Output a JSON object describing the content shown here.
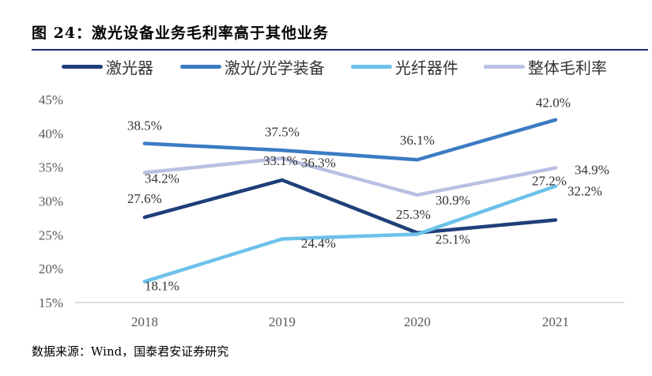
{
  "title": "图 24：激光设备业务毛利率高于其他业务",
  "source": "数据来源：Wind，国泰君安证券研究",
  "chart_data": {
    "type": "line",
    "title": "图 24：激光设备业务毛利率高于其他业务",
    "categories": [
      "2018",
      "2019",
      "2020",
      "2021"
    ],
    "ylim": [
      15,
      45
    ],
    "yticks": [
      "15%",
      "20%",
      "25%",
      "30%",
      "35%",
      "40%",
      "45%"
    ],
    "ytick_values": [
      15,
      20,
      25,
      30,
      35,
      40,
      45
    ],
    "grid": false,
    "legend_position": "top",
    "series": [
      {
        "name": "激光器",
        "color": "#1f3f7a",
        "values": [
          27.6,
          33.1,
          25.3,
          27.2
        ],
        "labels": [
          "27.6%",
          "33.1%",
          "25.3%",
          "27.2%"
        ]
      },
      {
        "name": "激光/光学装备",
        "color": "#3b7bc4",
        "values": [
          38.5,
          37.5,
          36.1,
          42.0
        ],
        "labels": [
          "38.5%",
          "37.5%",
          "36.1%",
          "42.0%"
        ]
      },
      {
        "name": "光纤器件",
        "color": "#6cc1ea",
        "values": [
          18.1,
          24.4,
          25.1,
          32.2
        ],
        "labels": [
          "18.1%",
          "24.4%",
          "25.1%",
          "32.2%"
        ]
      },
      {
        "name": "整体毛利率",
        "color": "#b9c0e2",
        "values": [
          34.2,
          36.3,
          30.9,
          34.9
        ],
        "labels": [
          "34.2%",
          "36.3%",
          "30.9%",
          "34.9%"
        ]
      }
    ]
  }
}
